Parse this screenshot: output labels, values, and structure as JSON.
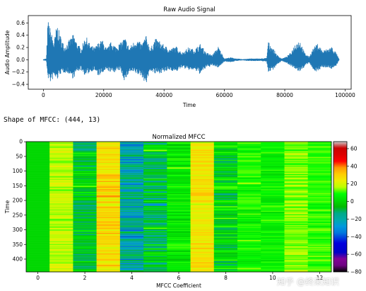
{
  "shape_text": "Shape of MFCC: (444, 13)",
  "watermark": "知乎 @终来知识",
  "chart_data": [
    {
      "type": "line",
      "title": "Raw Audio Signal",
      "xlabel": "Time",
      "ylabel": "Audio Amplitude",
      "xlim": [
        -5000,
        102000
      ],
      "ylim": [
        -0.48,
        0.72
      ],
      "xticks": [
        0,
        20000,
        40000,
        60000,
        80000,
        100000
      ],
      "xtick_labels": [
        "0",
        "20000",
        "40000",
        "60000",
        "80000",
        "100000"
      ],
      "yticks": [
        0.6,
        0.4,
        0.2,
        0.0,
        -0.2,
        -0.4
      ],
      "ytick_labels": [
        "0.6",
        "0.4",
        "0.2",
        "0.0",
        "−0.2",
        "−0.4"
      ],
      "color": "#1f77b4",
      "num_samples": 98000,
      "envelope": {
        "x": [
          0,
          1000,
          1500,
          2500,
          3500,
          4500,
          5500,
          7000,
          8500,
          10000,
          11000,
          12500,
          14000,
          15500,
          17000,
          18000,
          19500,
          21000,
          22500,
          24000,
          25500,
          27000,
          28500,
          30000,
          31000,
          32500,
          34000,
          35500,
          37000,
          38500,
          40000,
          42000,
          44000,
          46000,
          48000,
          50000,
          52000,
          54000,
          56000,
          58000,
          60000,
          62000,
          64000,
          66000,
          68000,
          70000,
          72000,
          74000,
          74500,
          76000,
          77500,
          79000,
          80500,
          82000,
          83500,
          85000,
          86500,
          88000,
          89500,
          91000,
          92500,
          94000,
          95500,
          97000,
          98000
        ],
        "upper": [
          0.01,
          0.02,
          0.66,
          0.48,
          0.28,
          0.6,
          0.42,
          0.22,
          0.32,
          0.42,
          0.3,
          0.18,
          0.4,
          0.25,
          0.2,
          0.27,
          0.33,
          0.18,
          0.3,
          0.22,
          0.28,
          0.37,
          0.2,
          0.3,
          0.34,
          0.26,
          0.4,
          0.18,
          0.35,
          0.31,
          0.24,
          0.18,
          0.22,
          0.12,
          0.2,
          0.17,
          0.26,
          0.12,
          0.08,
          0.22,
          0.02,
          0.04,
          0.02,
          0.01,
          0.02,
          0.02,
          0.02,
          0.03,
          0.3,
          0.2,
          0.08,
          0.02,
          0.05,
          0.12,
          0.28,
          0.33,
          0.12,
          0.05,
          0.2,
          0.27,
          0.15,
          0.18,
          0.22,
          0.12,
          0.01
        ],
        "lower": [
          -0.01,
          -0.02,
          -0.3,
          -0.38,
          -0.28,
          -0.34,
          -0.24,
          -0.21,
          -0.23,
          -0.32,
          -0.2,
          -0.17,
          -0.27,
          -0.2,
          -0.17,
          -0.27,
          -0.23,
          -0.17,
          -0.21,
          -0.2,
          -0.17,
          -0.36,
          -0.2,
          -0.22,
          -0.24,
          -0.27,
          -0.4,
          -0.18,
          -0.24,
          -0.22,
          -0.21,
          -0.17,
          -0.2,
          -0.13,
          -0.17,
          -0.17,
          -0.24,
          -0.13,
          -0.1,
          -0.13,
          -0.03,
          -0.04,
          -0.02,
          -0.01,
          -0.02,
          -0.02,
          -0.02,
          -0.03,
          -0.2,
          -0.17,
          -0.08,
          -0.02,
          -0.05,
          -0.1,
          -0.17,
          -0.2,
          -0.12,
          -0.05,
          -0.17,
          -0.2,
          -0.12,
          -0.13,
          -0.15,
          -0.1,
          -0.01
        ]
      }
    },
    {
      "type": "heatmap",
      "title": "Normalized MFCC",
      "xlabel": "MFCC Coefficient",
      "ylabel": "Time",
      "shape": [
        444,
        13
      ],
      "xlim": [
        -0.5,
        12.5
      ],
      "ylim": [
        443.5,
        -0.5
      ],
      "xticks": [
        0,
        2,
        4,
        6,
        8,
        10,
        12
      ],
      "xtick_labels": [
        "0",
        "2",
        "4",
        "6",
        "8",
        "10",
        "12"
      ],
      "yticks": [
        0,
        50,
        100,
        150,
        200,
        250,
        300,
        350,
        400
      ],
      "ytick_labels": [
        "0",
        "50",
        "100",
        "150",
        "200",
        "250",
        "300",
        "350",
        "400"
      ],
      "colormap": "nipy_spectral",
      "colorbar": {
        "min": -80,
        "max": 68,
        "ticks": [
          60,
          40,
          20,
          0,
          -20,
          -40,
          -60,
          -80
        ],
        "tick_labels": [
          "60",
          "40",
          "20",
          "0",
          "−20",
          "−40",
          "−60",
          "−80"
        ]
      },
      "column_mean": [
        0,
        18,
        -5,
        27,
        -20,
        -8,
        4,
        25,
        -2,
        8,
        6,
        14,
        10
      ],
      "column_spread": [
        0,
        12,
        25,
        16,
        34,
        32,
        16,
        14,
        26,
        12,
        12,
        9,
        9
      ]
    }
  ]
}
